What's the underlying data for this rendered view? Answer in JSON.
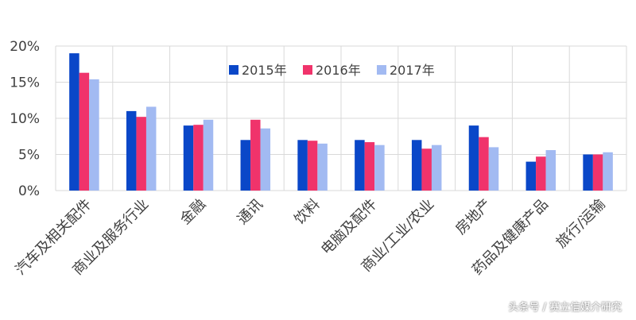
{
  "chart_data": {
    "type": "bar",
    "categories": [
      "汽车及相关配件",
      "商业及服务行业",
      "金融",
      "通讯",
      "饮料",
      "电脑及配件",
      "商业/工业/农业",
      "房地产",
      "药品及健康产品",
      "旅行/运输"
    ],
    "series": [
      {
        "name": "2015年",
        "color": "#0a47c8",
        "values": [
          19.0,
          11.0,
          9.0,
          7.0,
          7.0,
          7.0,
          7.0,
          9.0,
          4.0,
          5.0
        ]
      },
      {
        "name": "2016年",
        "color": "#f0336b",
        "values": [
          16.3,
          10.2,
          9.1,
          9.8,
          6.9,
          6.7,
          5.8,
          7.4,
          4.7,
          5.0
        ]
      },
      {
        "name": "2017年",
        "color": "#a2baf2",
        "values": [
          15.4,
          11.6,
          9.8,
          8.6,
          6.5,
          6.3,
          6.3,
          6.0,
          5.6,
          5.3
        ]
      }
    ],
    "y_ticks": [
      "0%",
      "5%",
      "10%",
      "15%",
      "20%"
    ],
    "ylim": [
      0,
      20
    ],
    "grid": true,
    "legend_position": "top-center"
  },
  "footer": {
    "source": "头条号 /",
    "brand": "赛立信媒介研究"
  },
  "watermark": "赛立信媒介研究"
}
